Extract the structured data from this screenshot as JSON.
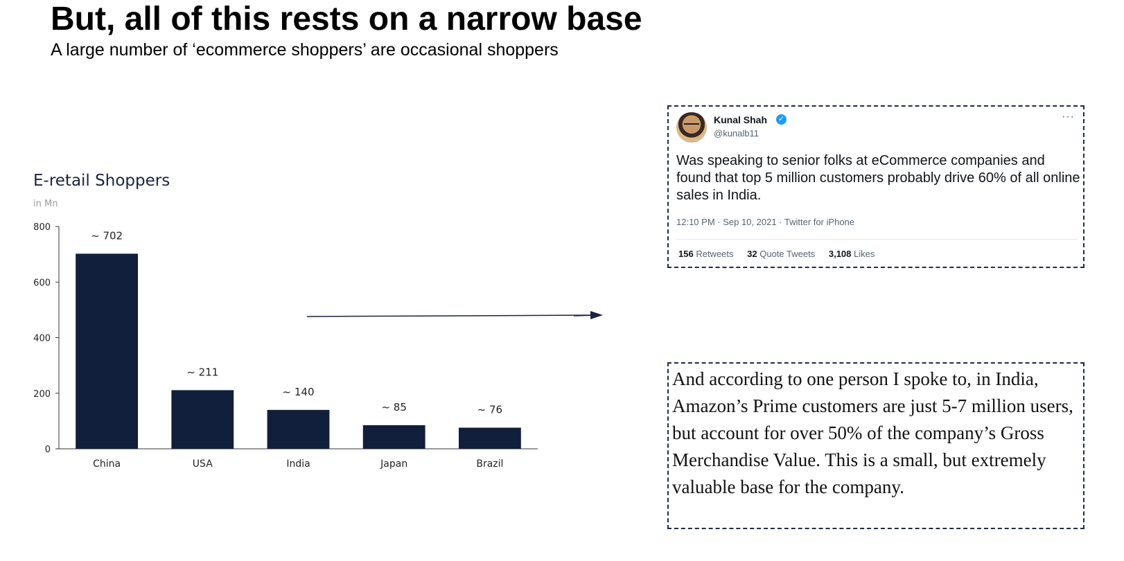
{
  "slide": {
    "title": "But, all of this rests on a narrow base",
    "subtitle": "A large number of ‘ecommerce shoppers’ are occasional shoppers"
  },
  "chart_data": {
    "type": "bar",
    "title": "E-retail Shoppers",
    "unit_label": "in Mn",
    "categories": [
      "China",
      "USA",
      "India",
      "Japan",
      "Brazil"
    ],
    "values": [
      702,
      211,
      140,
      85,
      76
    ],
    "data_labels": [
      "~ 702",
      "~ 211",
      "~ 140",
      "~ 85",
      "~ 76"
    ],
    "ylim": [
      0,
      800
    ],
    "yticks": [
      0,
      200,
      400,
      600,
      800
    ],
    "bar_color": "#111f3c",
    "grid": false
  },
  "tweet": {
    "author_name": "Kunal Shah",
    "handle": "@kunalb11",
    "text": "Was speaking to senior folks at eCommerce companies and found that top 5 million customers probably drive 60% of all online sales in India.",
    "timestamp": "12:10 PM · Sep 10, 2021 · Twitter for iPhone",
    "retweets_count": "156",
    "retweets_label": "Retweets",
    "quotes_count": "32",
    "quotes_label": "Quote Tweets",
    "likes_count": "3,108",
    "likes_label": "Likes"
  },
  "quote": {
    "text": "And according to one person I spoke to, in India, Amazon’s Prime customers are just 5-7 million users, but account for over 50% of the company’s Gross Merchandise Value. This is a small, but extremely valuable base for the company."
  }
}
